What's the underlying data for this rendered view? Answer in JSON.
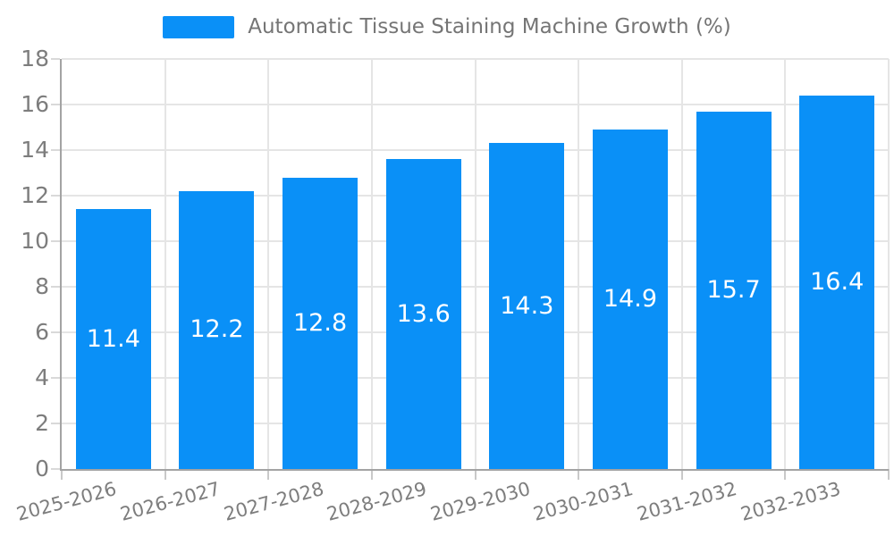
{
  "legend": {
    "label": "Automatic Tissue Staining Machine Growth (%)"
  },
  "chart_data": {
    "type": "bar",
    "title": "Automatic Tissue Staining Machine Growth (%)",
    "categories": [
      "2025-2026",
      "2026-2027",
      "2027-2028",
      "2028-2029",
      "2029-2030",
      "2030-2031",
      "2031-2032",
      "2032-2033"
    ],
    "values": [
      11.4,
      12.2,
      12.8,
      13.6,
      14.3,
      14.9,
      15.7,
      16.4
    ],
    "series": [
      {
        "name": "Automatic Tissue Staining Machine Growth (%)",
        "values": [
          11.4,
          12.2,
          12.8,
          13.6,
          14.3,
          14.9,
          15.7,
          16.4
        ]
      }
    ],
    "xlabel": "",
    "ylabel": "",
    "ylim": [
      0,
      18
    ],
    "ytick_step": 2,
    "yticks": [
      0,
      2,
      4,
      6,
      8,
      10,
      12,
      14,
      16,
      18
    ],
    "grid": true,
    "legend_position": "top",
    "value_labels": "inside-center",
    "xlabel_rotation_deg": -15
  },
  "colors": {
    "bar": "#0a90f7",
    "value_label": "#ffffff",
    "axis": "#a3a3a3",
    "grid": "#e5e5e5",
    "tick_label": "#7d7d7d",
    "legend_text": "#757575",
    "background": "#ffffff"
  }
}
